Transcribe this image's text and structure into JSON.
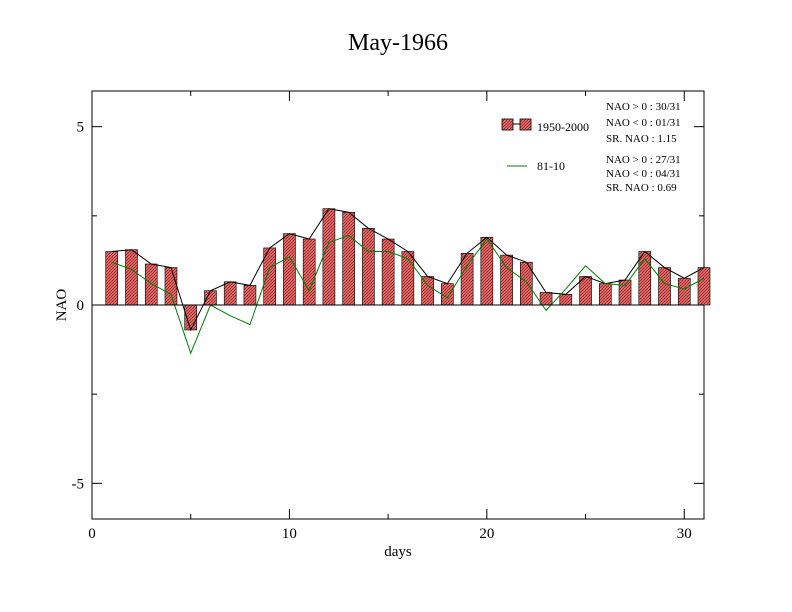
{
  "chart_data": {
    "type": "bar",
    "title": "May-1966",
    "xlabel": "days",
    "ylabel": "NAO",
    "xlim": [
      0,
      31
    ],
    "ylim": [
      -6,
      6
    ],
    "xticks": [
      0,
      10,
      20,
      30
    ],
    "yticks": [
      -5,
      0,
      5
    ],
    "x": [
      1,
      2,
      3,
      4,
      5,
      6,
      7,
      8,
      9,
      10,
      11,
      12,
      13,
      14,
      15,
      16,
      17,
      18,
      19,
      20,
      21,
      22,
      23,
      24,
      25,
      26,
      27,
      28,
      29,
      30,
      31
    ],
    "series": [
      {
        "name": "1950-2000",
        "kind": "bar+line",
        "values": [
          1.5,
          1.55,
          1.15,
          1.05,
          -0.7,
          0.4,
          0.65,
          0.55,
          1.6,
          2.0,
          1.85,
          2.7,
          2.6,
          2.15,
          1.85,
          1.5,
          0.8,
          0.6,
          1.45,
          1.9,
          1.4,
          1.2,
          0.35,
          0.3,
          0.8,
          0.6,
          0.7,
          1.5,
          1.05,
          0.75,
          1.05
        ],
        "fill": "#e57373",
        "stroke": "#000000"
      },
      {
        "name": "81-10",
        "kind": "line",
        "values": [
          1.2,
          1.0,
          0.6,
          0.3,
          -1.35,
          0.0,
          -0.3,
          -0.55,
          1.05,
          1.35,
          0.4,
          1.75,
          1.95,
          1.5,
          1.5,
          1.3,
          0.55,
          0.2,
          1.1,
          1.85,
          1.05,
          0.65,
          -0.15,
          0.45,
          1.1,
          0.6,
          0.55,
          1.3,
          0.6,
          0.45,
          0.75
        ],
        "color": "#008000"
      }
    ],
    "stats": [
      [
        "NAO > 0 : 30/31",
        "NAO < 0 : 01/31",
        "SR. NAO :  1.15"
      ],
      [
        "NAO > 0 : 27/31",
        "NAO < 0 : 04/31",
        "SR. NAO :  0.69"
      ]
    ],
    "legend_position": "top-right",
    "grid": false
  }
}
